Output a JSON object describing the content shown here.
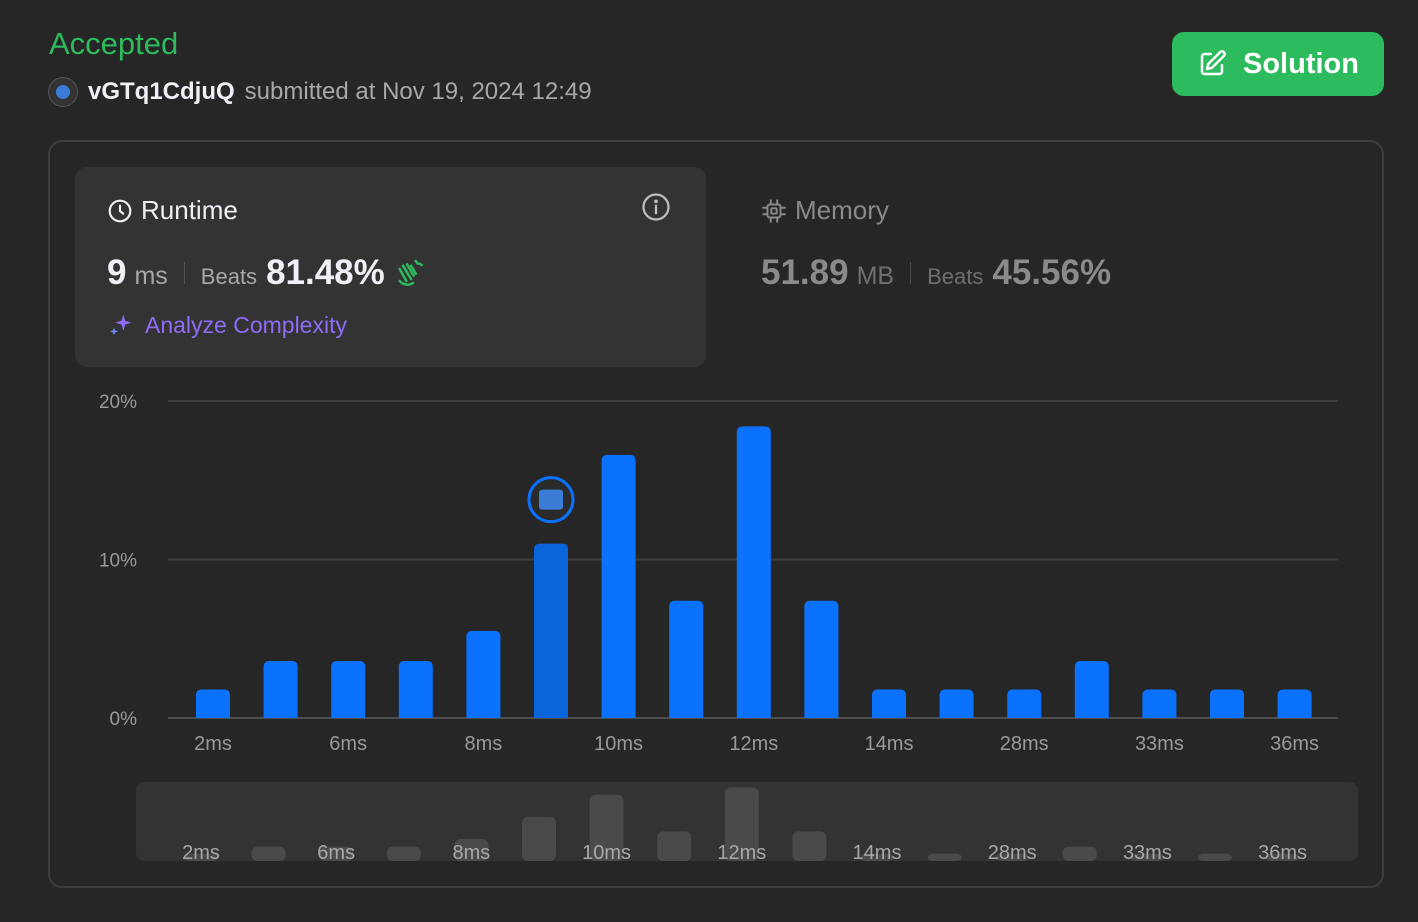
{
  "header": {
    "status": "Accepted",
    "username": "vGTq1CdjuQ",
    "submitted_text": "submitted at Nov 19, 2024 12:49",
    "solution_label": "Solution"
  },
  "runtime": {
    "title": "Runtime",
    "value": "9",
    "unit": "ms",
    "beats_label": "Beats",
    "beats_value": "81.48%",
    "analyze_label": "Analyze Complexity"
  },
  "memory": {
    "title": "Memory",
    "value": "51.89",
    "unit": "MB",
    "beats_label": "Beats",
    "beats_value": "45.56%"
  },
  "colors": {
    "accepted": "#2cbb5d",
    "bar": "#0a72fe",
    "bar_selected": "#0a64dc",
    "minimap_bar": "#4a4a4a",
    "analyze": "#8e6cf7"
  },
  "chart_data": {
    "type": "bar",
    "xlabel": "",
    "ylabel": "",
    "y_ticks": [
      "0%",
      "10%",
      "20%"
    ],
    "ylim": [
      0,
      20
    ],
    "grid": true,
    "x_tick_labels": [
      "2ms",
      "6ms",
      "8ms",
      "10ms",
      "12ms",
      "14ms",
      "28ms",
      "33ms",
      "36ms"
    ],
    "x_tick_bar_index": [
      0,
      2,
      4,
      6,
      8,
      10,
      12,
      14,
      16
    ],
    "values": [
      1.8,
      3.6,
      3.6,
      3.6,
      5.5,
      11.0,
      16.6,
      7.4,
      18.4,
      7.4,
      1.8,
      1.8,
      1.8,
      3.6,
      1.8,
      1.8,
      1.8
    ],
    "selected_index": 5,
    "selected_marker": "user-avatar"
  }
}
